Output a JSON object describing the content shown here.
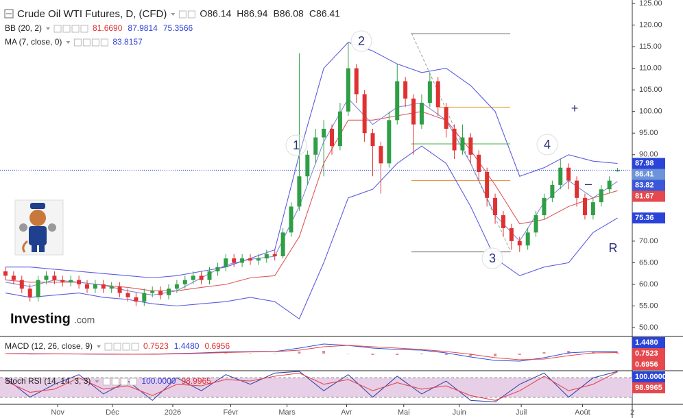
{
  "header": {
    "title": "Crude Oil WTI Futures, D, (CFD)",
    "ohlc": [
      "O86.14",
      "H86.94",
      "B86.08",
      "C86.41"
    ]
  },
  "logo": {
    "brand": "Investing",
    "suffix": ".com"
  },
  "chart_data": [
    {
      "type": "candlestick",
      "up_color": "#2f9e44",
      "down_color": "#e03131",
      "xlim": [
        -0.67,
        76.8
      ],
      "ylim": [
        48.1,
        125.8
      ],
      "yticks": [
        {
          "value": 50,
          "label": "50.00"
        },
        {
          "value": 55,
          "label": "55.00"
        },
        {
          "value": 60,
          "label": "60.00"
        },
        {
          "value": 65,
          "label": "65.00"
        },
        {
          "value": 70,
          "label": "70.00"
        },
        {
          "value": 75,
          "label": "75.00"
        },
        {
          "value": 80,
          "label": "80.00"
        },
        {
          "value": 85,
          "label": "85.00"
        },
        {
          "value": 90,
          "label": "90.00"
        },
        {
          "value": 95,
          "label": "95.00"
        },
        {
          "value": 100,
          "label": "100.00"
        },
        {
          "value": 105,
          "label": "105.00"
        },
        {
          "value": 110,
          "label": "110.00"
        },
        {
          "value": 115,
          "label": "115.00"
        },
        {
          "value": 120,
          "label": "120.00"
        },
        {
          "value": 125,
          "label": "125.00"
        }
      ],
      "xticks": [
        {
          "value": 6.4,
          "label": "Nov"
        },
        {
          "value": 13.1,
          "label": "Déc"
        },
        {
          "value": 20.5,
          "label": "2026"
        },
        {
          "value": 27.6,
          "label": "Févr"
        },
        {
          "value": 34.5,
          "label": "Mars"
        },
        {
          "value": 41.8,
          "label": "Avr"
        },
        {
          "value": 48.8,
          "label": "Mai"
        },
        {
          "value": 55.6,
          "label": "Juin"
        },
        {
          "value": 63.2,
          "label": "Juil"
        },
        {
          "value": 70.7,
          "label": "Août"
        },
        {
          "value": 76.8,
          "label": "2"
        }
      ],
      "candles": [
        [
          63,
          64,
          61,
          62
        ],
        [
          62,
          63,
          60,
          61
        ],
        [
          61,
          62,
          58,
          59
        ],
        [
          59,
          60,
          56,
          57
        ],
        [
          57,
          62,
          56,
          61
        ],
        [
          61,
          63,
          60,
          62
        ],
        [
          62,
          63,
          60,
          61
        ],
        [
          61,
          62,
          59.5,
          60.5
        ],
        [
          60.5,
          62,
          59.5,
          61
        ],
        [
          61,
          62,
          59,
          60
        ],
        [
          60,
          61,
          58,
          59
        ],
        [
          59,
          61,
          58,
          60
        ],
        [
          60,
          61,
          58,
          59
        ],
        [
          59,
          60.5,
          58,
          59.5
        ],
        [
          59.5,
          60.5,
          57,
          58
        ],
        [
          58,
          59,
          56,
          57
        ],
        [
          57,
          58,
          55,
          56
        ],
        [
          56,
          59,
          55,
          58
        ],
        [
          58,
          59.5,
          57,
          58.5
        ],
        [
          58.5,
          59.5,
          56.5,
          57.5
        ],
        [
          57.5,
          60,
          56.5,
          59
        ],
        [
          59,
          61,
          58,
          60
        ],
        [
          60,
          62,
          59,
          61
        ],
        [
          61,
          63,
          60,
          62
        ],
        [
          62,
          63,
          60,
          61
        ],
        [
          61,
          64,
          60,
          63
        ],
        [
          63,
          65,
          62,
          64
        ],
        [
          64,
          67,
          63,
          66
        ],
        [
          66,
          67,
          64,
          65
        ],
        [
          65,
          67,
          64,
          66
        ],
        [
          66,
          67,
          64.5,
          65.5
        ],
        [
          65.5,
          67,
          64.5,
          66
        ],
        [
          66,
          68,
          65,
          67
        ],
        [
          67,
          68,
          65.5,
          66.5
        ],
        [
          66.5,
          73,
          66,
          72
        ],
        [
          72,
          79,
          71,
          78
        ],
        [
          78,
          113.5,
          77,
          85
        ],
        [
          85,
          91,
          83,
          90
        ],
        [
          90,
          96,
          88,
          94
        ],
        [
          94,
          98,
          85,
          96
        ],
        [
          96,
          97,
          90,
          92
        ],
        [
          92,
          102,
          91,
          100
        ],
        [
          100,
          116,
          99,
          110
        ],
        [
          110,
          111,
          102,
          104
        ],
        [
          104,
          105,
          93,
          95
        ],
        [
          95,
          96,
          85,
          92
        ],
        [
          92,
          93,
          81,
          88
        ],
        [
          88,
          100,
          87,
          98
        ],
        [
          98,
          111,
          97,
          107
        ],
        [
          107,
          108,
          101,
          103
        ],
        [
          103,
          104,
          90,
          97
        ],
        [
          97,
          104,
          96,
          102
        ],
        [
          102,
          109,
          101,
          107
        ],
        [
          107,
          108,
          99,
          101
        ],
        [
          101,
          102,
          94,
          96
        ],
        [
          96,
          97,
          89,
          91
        ],
        [
          91,
          97,
          90,
          94
        ],
        [
          94,
          95,
          88,
          90
        ],
        [
          90,
          91,
          84,
          86
        ],
        [
          86,
          87,
          78,
          80
        ],
        [
          80,
          81,
          74,
          76
        ],
        [
          76,
          77,
          71,
          73
        ],
        [
          73,
          74,
          68,
          70
        ],
        [
          70,
          71,
          67.5,
          69
        ],
        [
          69,
          73,
          68,
          72
        ],
        [
          72,
          77,
          71,
          76
        ],
        [
          76,
          81,
          75,
          80
        ],
        [
          80,
          84,
          79,
          83
        ],
        [
          83,
          89,
          82,
          87
        ],
        [
          87,
          88,
          82,
          84
        ],
        [
          84,
          85,
          78,
          80
        ],
        [
          80,
          81,
          75,
          76
        ],
        [
          76,
          80,
          75,
          79
        ],
        [
          79,
          83,
          78,
          82
        ],
        [
          82,
          85,
          81,
          84
        ],
        [
          86.14,
          86.94,
          86.08,
          86.41
        ]
      ],
      "x": [
        0,
        3,
        6,
        9,
        12,
        15,
        18,
        21,
        24,
        27,
        30,
        33,
        36,
        39,
        42,
        45,
        48,
        51,
        54,
        57,
        60,
        63,
        66,
        69,
        72,
        75
      ],
      "series": [
        {
          "color": "#5c5ce0",
          "values": [
            64,
            64,
            63.5,
            63,
            62.5,
            62,
            61.5,
            62,
            63,
            64,
            66,
            68,
            90,
            110,
            116,
            114,
            111,
            109,
            110,
            106,
            100,
            85,
            87,
            90,
            88.5,
            87.98
          ]
        },
        {
          "color": "#e0585a",
          "values": [
            61,
            60.5,
            60.5,
            60.5,
            59.8,
            59.3,
            58.5,
            58.5,
            59.3,
            60,
            61.5,
            62,
            71,
            88,
            98,
            98,
            99,
            100,
            98,
            91,
            83,
            74,
            75,
            78,
            80,
            81.67
          ]
        },
        {
          "color": "#5c5ce0",
          "values": [
            58,
            57,
            57.5,
            58,
            57,
            56.5,
            55.5,
            55,
            55.5,
            56,
            57,
            56,
            52,
            65,
            80,
            82,
            88,
            92,
            88,
            78,
            66,
            62,
            64,
            65,
            72,
            75.36
          ]
        },
        {
          "color": "#7f8ad6",
          "values": [
            60.5,
            59.5,
            61,
            60.5,
            59.8,
            58.5,
            57.5,
            58.5,
            61.5,
            64.5,
            65.8,
            66.5,
            78,
            93,
            103,
            97,
            101,
            102,
            98,
            88,
            76,
            70,
            79,
            84,
            80,
            83.82
          ]
        }
      ],
      "legend": [
        {
          "label": "BB (20, 2)",
          "values": [
            "81.6690",
            "87.9814",
            "75.3566"
          ],
          "colors": [
            "#e03131",
            "#2f3fd8",
            "#2f3fd8"
          ]
        },
        {
          "label": "MA (7, close, 0)",
          "values": [
            "83.8157"
          ],
          "colors": [
            "#2f3fd8"
          ]
        }
      ],
      "price_tags": [
        {
          "value": 87.98,
          "color": "#2a44d8"
        },
        {
          "value": 86.41,
          "color": "#6d93d8"
        },
        {
          "value": 83.82,
          "color": "#3b58d8"
        },
        {
          "value": 81.67,
          "color": "#e5484d"
        },
        {
          "value": 75.36,
          "color": "#2a44d8"
        }
      ],
      "levels": [
        {
          "value": 118,
          "color": "#666666"
        },
        {
          "value": 101,
          "color": "#e0a030"
        },
        {
          "value": 92.5,
          "color": "#40b040"
        },
        {
          "value": 84,
          "color": "#e08a30"
        },
        {
          "value": 67.5,
          "color": "#666666"
        }
      ],
      "annotations": [
        "1",
        "2",
        "3",
        "4",
        "+",
        "–",
        "R"
      ]
    },
    {
      "type": "macd",
      "xlim": [
        -0.67,
        76.8
      ],
      "ylim": [
        -12,
        12
      ],
      "x": [
        0,
        3,
        6,
        9,
        12,
        15,
        18,
        21,
        24,
        27,
        30,
        33,
        36,
        39,
        42,
        45,
        48,
        51,
        54,
        57,
        60,
        63,
        66,
        69,
        72,
        75
      ],
      "series": [
        {
          "color": "#2f4fd8",
          "values": [
            0,
            -0.3,
            -0.2,
            -0.3,
            -0.4,
            -0.5,
            -0.4,
            0,
            0.5,
            1.2,
            1.4,
            1.5,
            4,
            7,
            6,
            4,
            3,
            2.5,
            0.5,
            -2.5,
            -5,
            -5.5,
            -3,
            0.5,
            1.5,
            1.448
          ]
        },
        {
          "color": "#e5484d",
          "values": [
            0,
            -0.1,
            -0.2,
            -0.25,
            -0.35,
            -0.45,
            -0.45,
            -0.2,
            0.2,
            0.8,
            1.2,
            1.4,
            2.5,
            5,
            6,
            5,
            4,
            3,
            1.5,
            -0.5,
            -3,
            -4.5,
            -4,
            -1.5,
            0.5,
            0.7523
          ]
        }
      ],
      "histogram": [
        0,
        -0.2,
        0,
        -0.05,
        -0.05,
        -0.05,
        0.05,
        0.2,
        0.3,
        0.4,
        0.2,
        0.1,
        1.5,
        2,
        0,
        -1,
        -1,
        -0.5,
        -1,
        -2,
        -2,
        -1,
        1,
        2,
        1,
        0.6956
      ],
      "histogram_color": "#e58a8c",
      "legend": [
        {
          "label": "MACD (12, 26, close, 9)",
          "values": [
            "0.7523",
            "1.4480",
            "0.6956"
          ],
          "colors": [
            "#e03131",
            "#2f3fd8",
            "#e03131"
          ]
        }
      ],
      "price_tags": [
        {
          "value": 1.448,
          "label": "1.4480",
          "color": "#2a44d8"
        },
        {
          "value": 0.7523,
          "color": "#e5484d"
        },
        {
          "value": 0.6956,
          "color": "#e5484d"
        }
      ]
    },
    {
      "type": "stoch",
      "xlim": [
        -0.67,
        76.8
      ],
      "ylim": [
        0,
        100
      ],
      "band": [
        20,
        80
      ],
      "x": [
        0,
        3,
        6,
        9,
        12,
        15,
        18,
        21,
        24,
        27,
        30,
        33,
        36,
        39,
        42,
        45,
        48,
        51,
        54,
        57,
        60,
        63,
        66,
        69,
        72,
        75
      ],
      "series": [
        {
          "color": "#3949ab",
          "values": [
            80,
            20,
            60,
            90,
            30,
            70,
            10,
            80,
            40,
            90,
            60,
            95,
            100,
            40,
            90,
            20,
            85,
            30,
            70,
            10,
            5,
            60,
            95,
            20,
            80,
            100
          ]
        },
        {
          "color": "#e5484d",
          "values": [
            70,
            35,
            45,
            80,
            45,
            55,
            25,
            60,
            55,
            75,
            70,
            85,
            95,
            60,
            75,
            40,
            65,
            45,
            55,
            25,
            10,
            40,
            85,
            40,
            60,
            98.9965
          ]
        }
      ],
      "legend": [
        {
          "label": "Stoch RSI (14, 14, 3, 3)",
          "values": [
            "100.0000",
            "98.9965"
          ],
          "colors": [
            "#2f3fd8",
            "#e03131"
          ]
        }
      ],
      "price_tags": [
        {
          "value": 100,
          "label": "100.0000",
          "color": "#2a44d8"
        },
        {
          "value": 98.9965,
          "color": "#e5484d"
        }
      ]
    }
  ]
}
